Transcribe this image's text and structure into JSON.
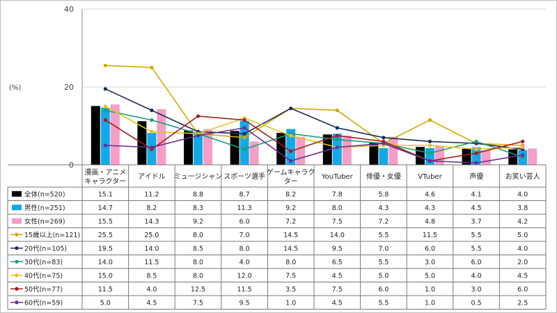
{
  "chart_data": {
    "type": "bar",
    "unit_label": "(%)",
    "ylim": [
      0,
      40
    ],
    "yticks": [
      0,
      20,
      40
    ],
    "categories": [
      [
        "漫画・アニメ",
        "キャラクター"
      ],
      [
        "アイドル"
      ],
      [
        "ミュージシャン"
      ],
      [
        "スポーツ選手"
      ],
      [
        "ゲームキャラク",
        "ター"
      ],
      [
        "YouTuber"
      ],
      [
        "俳優・女優"
      ],
      [
        "VTuber"
      ],
      [
        "声優"
      ],
      [
        "お笑い芸人"
      ]
    ],
    "bar_series": [
      {
        "name": "全体(n=520)",
        "color": "#000000",
        "values": [
          15.1,
          11.2,
          8.8,
          8.7,
          8.2,
          7.8,
          5.8,
          4.6,
          4.1,
          4.0
        ],
        "labels": [
          "15.1",
          "11.2",
          "8.8",
          "8.7",
          "8.2",
          "7.8",
          "5.8",
          "4.6",
          "4.1",
          "4.0"
        ]
      },
      {
        "name": "男性(n=251)",
        "color": "#12a9e8",
        "values": [
          14.7,
          8.2,
          8.3,
          11.3,
          9.2,
          8.0,
          4.3,
          4.3,
          4.5,
          3.8
        ],
        "labels": [
          "14.7",
          "8.2",
          "8.3",
          "11.3",
          "9.2",
          "8.0",
          "4.3",
          "4.3",
          "4.5",
          "3.8"
        ]
      },
      {
        "name": "女性(n=269)",
        "color": "#f59ec7",
        "values": [
          15.5,
          14.3,
          9.2,
          6.0,
          7.2,
          7.5,
          7.2,
          4.8,
          3.7,
          4.2
        ],
        "labels": [
          "15.5",
          "14.3",
          "9.2",
          "6.0",
          "7.2",
          "7.5",
          "7.2",
          "4.8",
          "3.7",
          "4.2"
        ]
      }
    ],
    "line_series": [
      {
        "name": "15歳以上(n=121)",
        "color": "#d9a800",
        "values": [
          25.5,
          25.0,
          8.0,
          7.0,
          14.5,
          14.0,
          5.5,
          11.5,
          5.5,
          5.0
        ],
        "labels": [
          "25.5",
          "25.0",
          "8.0",
          "7.0",
          "14.5",
          "14.0",
          "5.5",
          "11.5",
          "5.5",
          "5.0"
        ]
      },
      {
        "name": "20代(n=105)",
        "color": "#1b2a5e",
        "values": [
          19.5,
          14.0,
          8.5,
          8.0,
          14.5,
          9.5,
          7.0,
          6.0,
          5.5,
          4.0
        ],
        "labels": [
          "19.5",
          "14.0",
          "8.5",
          "8.0",
          "14.5",
          "9.5",
          "7.0",
          "6.0",
          "5.5",
          "4.0"
        ]
      },
      {
        "name": "30代(n=83)",
        "color": "#1a9e78",
        "values": [
          14.0,
          11.5,
          8.0,
          4.0,
          8.0,
          6.5,
          5.5,
          3.0,
          6.0,
          2.0
        ],
        "labels": [
          "14.0",
          "11.5",
          "8.0",
          "4.0",
          "8.0",
          "6.5",
          "5.5",
          "3.0",
          "6.0",
          "2.0"
        ]
      },
      {
        "name": "40代(n=75)",
        "color": "#e8c31a",
        "values": [
          15.0,
          8.5,
          8.0,
          12.0,
          7.5,
          4.5,
          5.0,
          5.0,
          4.0,
          4.5
        ],
        "labels": [
          "15.0",
          "8.5",
          "8.0",
          "12.0",
          "7.5",
          "4.5",
          "5.0",
          "5.0",
          "4.0",
          "4.5"
        ]
      },
      {
        "name": "50代(n=77)",
        "color": "#a31d1d",
        "values": [
          11.5,
          4.0,
          12.5,
          11.5,
          3.5,
          7.5,
          6.0,
          1.0,
          3.0,
          6.0
        ],
        "labels": [
          "11.5",
          "4.0",
          "12.5",
          "11.5",
          "3.5",
          "7.5",
          "6.0",
          "1.0",
          "3.0",
          "6.0"
        ]
      },
      {
        "name": "60代(n=59)",
        "color": "#6a2d91",
        "values": [
          5.0,
          4.5,
          7.5,
          9.5,
          1.0,
          4.5,
          5.5,
          1.0,
          0.5,
          2.5
        ],
        "labels": [
          "5.0",
          "4.5",
          "7.5",
          "9.5",
          "1.0",
          "4.5",
          "5.5",
          "1.0",
          "0.5",
          "2.5"
        ]
      }
    ]
  }
}
